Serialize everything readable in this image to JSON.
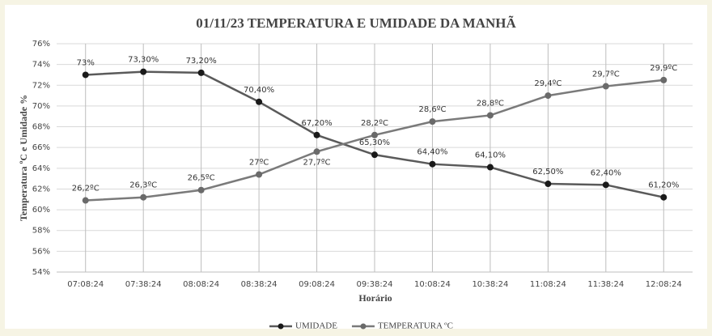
{
  "chart_data": {
    "type": "line",
    "title": "01/11/23 TEMPERATURA E UMIDADE DA MANHÃ",
    "x_label": "Horário",
    "y_label": "Temperatura ºC e Umidade %",
    "categories": [
      "07:08:24",
      "07:38:24",
      "08:08:24",
      "08:38:24",
      "09:08:24",
      "09:38:24",
      "10:08:24",
      "10:38:24",
      "11:08:24",
      "11:38:24",
      "12:08:24"
    ],
    "series": [
      {
        "name": "UMIDADE",
        "color": "#5a5a5a",
        "marker_color": "#1a1a1a",
        "values": [
          73,
          73.3,
          73.2,
          70.4,
          67.2,
          65.3,
          64.4,
          64.1,
          62.5,
          62.4,
          61.2
        ],
        "value_labels": [
          "73%",
          "73,30%",
          "73,20%",
          "70,40%",
          "67,20%",
          "65,30%",
          "64,40%",
          "64,10%",
          "62,50%",
          "62,40%",
          "61,20%"
        ]
      },
      {
        "name": "TEMPERATURA ºC",
        "color": "#7a7a7a",
        "marker_color": "#6a6a6a",
        "values": [
          60.9,
          61.2,
          61.9,
          63.4,
          65.6,
          67.2,
          68.5,
          69.1,
          71.0,
          71.9,
          72.5
        ],
        "value_labels": [
          "26,2ºC",
          "26,3ºC",
          "26,5ºC",
          "27ºC",
          "27,7ºC",
          "28,2ºC",
          "28,6ºC",
          "28,8ºC",
          "29,4ºC",
          "29,7ºC",
          "29,9ºC"
        ]
      }
    ],
    "ylim": [
      54,
      76
    ],
    "yticks": [
      {
        "value": 54,
        "label": "54%"
      },
      {
        "value": 56,
        "label": "56%"
      },
      {
        "value": 58,
        "label": "58%"
      },
      {
        "value": 60,
        "label": "60%"
      },
      {
        "value": 62,
        "label": "62%"
      },
      {
        "value": 64,
        "label": "64%"
      },
      {
        "value": 66,
        "label": "66%"
      },
      {
        "value": 68,
        "label": "68%"
      },
      {
        "value": 70,
        "label": "70%"
      },
      {
        "value": 72,
        "label": "72%"
      },
      {
        "value": 74,
        "label": "74%"
      },
      {
        "value": 76,
        "label": "76%"
      }
    ],
    "grid": true,
    "legend": "bottom"
  }
}
